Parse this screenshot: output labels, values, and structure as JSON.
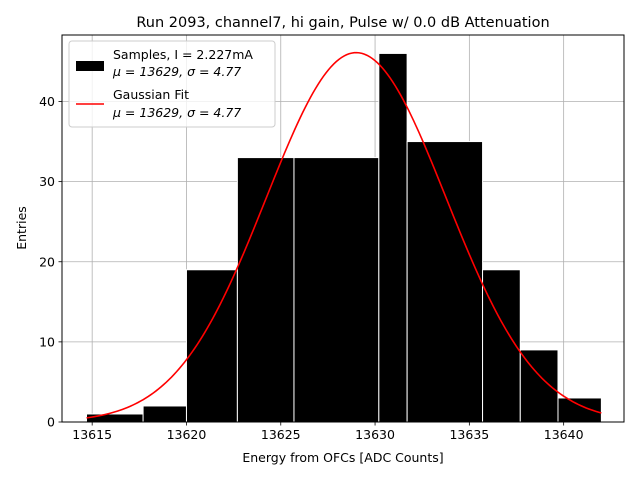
{
  "chart_data": {
    "type": "bar",
    "title": "Run 2093, channel7, hi gain, Pulse w/ 0.0 dB Attenuation",
    "xlabel": "Energy from OFCs [ADC Counts]",
    "ylabel": "Entries",
    "xlim": [
      13613.4,
      13643.2
    ],
    "ylim": [
      0,
      48.3
    ],
    "xticks": [
      13615,
      13620,
      13625,
      13630,
      13635,
      13640
    ],
    "yticks": [
      0,
      10,
      20,
      30,
      40
    ],
    "grid": true,
    "legend_position": "top-left",
    "bins": [
      {
        "x0": 13614.7,
        "x1": 13617.7,
        "value": 1
      },
      {
        "x0": 13617.7,
        "x1": 13620.0,
        "value": 2
      },
      {
        "x0": 13620.0,
        "x1": 13622.7,
        "value": 19
      },
      {
        "x0": 13622.7,
        "x1": 13625.7,
        "value": 33
      },
      {
        "x0": 13625.7,
        "x1": 13630.2,
        "value": 33
      },
      {
        "x0": 13630.2,
        "x1": 13631.7,
        "value": 46
      },
      {
        "x0": 13631.7,
        "x1": 13635.7,
        "value": 35
      },
      {
        "x0": 13635.7,
        "x1": 13637.7,
        "value": 19
      },
      {
        "x0": 13637.7,
        "x1": 13639.7,
        "value": 9
      },
      {
        "x0": 13639.7,
        "x1": 13642.0,
        "value": 3
      }
    ],
    "series": [
      {
        "name": "Samples, I = 2.227mA",
        "name_line2": "μ = 13629, σ = 4.77",
        "type": "histogram",
        "color": "#000000"
      },
      {
        "name": "Gaussian Fit",
        "name_line2": "μ = 13629, σ = 4.77",
        "type": "line",
        "color": "#ff0000",
        "fit": {
          "amplitude": 46.1,
          "mu": 13629.0,
          "sigma": 4.77,
          "x_start": 13614.7,
          "x_end": 13642.0
        }
      }
    ]
  }
}
